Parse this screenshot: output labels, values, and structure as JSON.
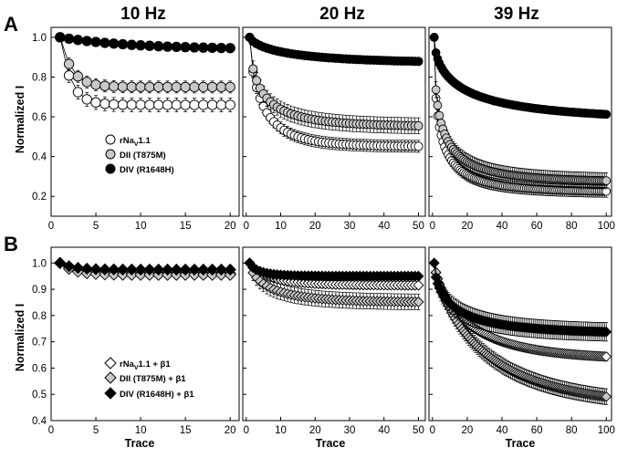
{
  "figure": {
    "panel_labels": [
      "A",
      "B"
    ],
    "frequencies": [
      "10 Hz",
      "20 Hz",
      "39 Hz"
    ],
    "ylabel": "Normalized I",
    "xlabel": "Trace"
  },
  "legend_A": [
    {
      "label": "rNa",
      "sub": "V",
      "suffix": "1.1",
      "marker": "circle",
      "fill": "#ffffff"
    },
    {
      "label": "DII (T875M)",
      "sub": "",
      "suffix": "",
      "marker": "circle",
      "fill": "#c8c8c8"
    },
    {
      "label": "DIV (R1648H)",
      "sub": "",
      "suffix": "",
      "marker": "circle",
      "fill": "#000000"
    }
  ],
  "legend_B": [
    {
      "label": "rNa",
      "sub": "V",
      "suffix": "1.1 + β1",
      "marker": "diamond",
      "fill": "#ffffff"
    },
    {
      "label": "DII (T875M) + β1",
      "sub": "",
      "suffix": "",
      "marker": "diamond",
      "fill": "#c8c8c8"
    },
    {
      "label": "DIV (R1648H) + β1",
      "sub": "",
      "suffix": "",
      "marker": "diamond",
      "fill": "#000000"
    }
  ],
  "chart_data": [
    {
      "type": "scatter",
      "panel": "A",
      "title": "10 Hz",
      "xlabel": "",
      "ylabel": "Normalized I",
      "xlim": [
        0,
        21
      ],
      "ylim": [
        0.1,
        1.05
      ],
      "xticks": [
        0,
        5,
        10,
        15,
        20
      ],
      "yticks": [
        0.2,
        0.4,
        0.6,
        0.8,
        1.0
      ],
      "marker": "circle",
      "n": 20,
      "series": [
        {
          "name": "rNaV1.1",
          "fill": "#ffffff",
          "start": 1.0,
          "end": 0.66,
          "tau": 1.2,
          "stretch": 1.0,
          "err": 0.035
        },
        {
          "name": "DII (T875M)",
          "fill": "#c8c8c8",
          "start": 1.0,
          "end": 0.75,
          "tau": 1.3,
          "stretch": 1.0,
          "err": 0.03
        },
        {
          "name": "DIV (R1648H)",
          "fill": "#000000",
          "start": 1.0,
          "end": 0.94,
          "tau": 8.0,
          "stretch": 1.0,
          "err": 0.0
        }
      ]
    },
    {
      "type": "scatter",
      "panel": "A",
      "title": "20 Hz",
      "xlabel": "",
      "ylabel": "",
      "xlim": [
        -1,
        52
      ],
      "ylim": [
        0.1,
        1.05
      ],
      "xticks": [
        0,
        10,
        20,
        30,
        40,
        50
      ],
      "yticks": [
        0.2,
        0.4,
        0.6,
        0.8,
        1.0
      ],
      "marker": "circle",
      "n": 50,
      "series": [
        {
          "name": "rNaV1.1",
          "fill": "#ffffff",
          "start": 1.0,
          "end": 0.45,
          "tau": 4.0,
          "stretch": 0.7,
          "err": 0.03
        },
        {
          "name": "DII (T875M)",
          "fill": "#c8c8c8",
          "start": 1.0,
          "end": 0.55,
          "tau": 4.0,
          "stretch": 0.6,
          "err": 0.04
        },
        {
          "name": "DIV (R1648H)",
          "fill": "#000000",
          "start": 1.0,
          "end": 0.87,
          "tau": 12.0,
          "stretch": 0.7,
          "err": 0.0
        }
      ]
    },
    {
      "type": "scatter",
      "panel": "A",
      "title": "39 Hz",
      "xlabel": "",
      "ylabel": "",
      "xlim": [
        -2,
        103
      ],
      "ylim": [
        0.1,
        1.05
      ],
      "xticks": [
        0,
        20,
        40,
        60,
        80,
        100
      ],
      "yticks": [
        0.2,
        0.4,
        0.6,
        0.8,
        1.0
      ],
      "marker": "circle",
      "n": 100,
      "series": [
        {
          "name": "rNaV1.1",
          "fill": "#ffffff",
          "start": 1.0,
          "end": 0.22,
          "tau": 4.0,
          "stretch": 0.5,
          "err": 0.03
        },
        {
          "name": "DII (T875M)",
          "fill": "#c8c8c8",
          "start": 1.0,
          "end": 0.27,
          "tau": 5.0,
          "stretch": 0.5,
          "err": 0.04
        },
        {
          "name": "DIV (R1648H)",
          "fill": "#000000",
          "start": 1.0,
          "end": 0.58,
          "tau": 18.0,
          "stretch": 0.55,
          "err": 0.0
        }
      ]
    },
    {
      "type": "scatter",
      "panel": "B",
      "title": "",
      "xlabel": "Trace",
      "ylabel": "Normalized I",
      "xlim": [
        0,
        21
      ],
      "ylim": [
        0.4,
        1.06
      ],
      "xticks": [
        0,
        5,
        10,
        15,
        20
      ],
      "yticks": [
        0.4,
        0.5,
        0.6,
        0.7,
        0.8,
        0.9,
        1.0
      ],
      "marker": "diamond",
      "n": 20,
      "series": [
        {
          "name": "rNaV1.1 + β1",
          "fill": "#ffffff",
          "start": 1.0,
          "end": 0.96,
          "tau": 2.0,
          "stretch": 1.0,
          "err": 0.01
        },
        {
          "name": "DII (T875M) + β1",
          "fill": "#c8c8c8",
          "start": 1.0,
          "end": 0.955,
          "tau": 1.5,
          "stretch": 1.0,
          "err": 0.015
        },
        {
          "name": "DIV (R1648H) + β1",
          "fill": "#000000",
          "start": 1.0,
          "end": 0.975,
          "tau": 1.5,
          "stretch": 1.0,
          "err": 0.01
        }
      ]
    },
    {
      "type": "scatter",
      "panel": "B",
      "title": "",
      "xlabel": "Trace",
      "ylabel": "",
      "xlim": [
        -1,
        52
      ],
      "ylim": [
        0.4,
        1.06
      ],
      "xticks": [
        0,
        10,
        20,
        30,
        40,
        50
      ],
      "yticks": [
        0.4,
        0.5,
        0.6,
        0.7,
        0.8,
        0.9,
        1.0
      ],
      "marker": "diamond",
      "n": 50,
      "series": [
        {
          "name": "rNaV1.1 + β1",
          "fill": "#ffffff",
          "start": 1.0,
          "end": 0.915,
          "tau": 6.0,
          "stretch": 0.8,
          "err": 0.015
        },
        {
          "name": "DII (T875M) + β1",
          "fill": "#c8c8c8",
          "start": 1.0,
          "end": 0.85,
          "tau": 6.0,
          "stretch": 0.7,
          "err": 0.03
        },
        {
          "name": "DIV (R1648H) + β1",
          "fill": "#000000",
          "start": 1.0,
          "end": 0.95,
          "tau": 3.0,
          "stretch": 0.8,
          "err": 0.01
        }
      ]
    },
    {
      "type": "scatter",
      "panel": "B",
      "title": "",
      "xlabel": "Trace",
      "ylabel": "",
      "xlim": [
        -2,
        103
      ],
      "ylim": [
        0.4,
        1.06
      ],
      "xticks": [
        0,
        20,
        40,
        60,
        80,
        100
      ],
      "yticks": [
        0.4,
        0.5,
        0.6,
        0.7,
        0.8,
        0.9,
        1.0
      ],
      "marker": "diamond",
      "n": 100,
      "series": [
        {
          "name": "rNaV1.1 + β1",
          "fill": "#ffffff",
          "start": 1.0,
          "end": 0.63,
          "tau": 20.0,
          "stretch": 0.75,
          "err": 0.015
        },
        {
          "name": "DII (T875M) + β1",
          "fill": "#c8c8c8",
          "start": 1.0,
          "end": 0.45,
          "tau": 30.0,
          "stretch": 0.8,
          "err": 0.03
        },
        {
          "name": "DIV (R1648H) + β1",
          "fill": "#000000",
          "start": 1.0,
          "end": 0.73,
          "tau": 12.0,
          "stretch": 0.6,
          "err": 0.035
        }
      ]
    }
  ]
}
